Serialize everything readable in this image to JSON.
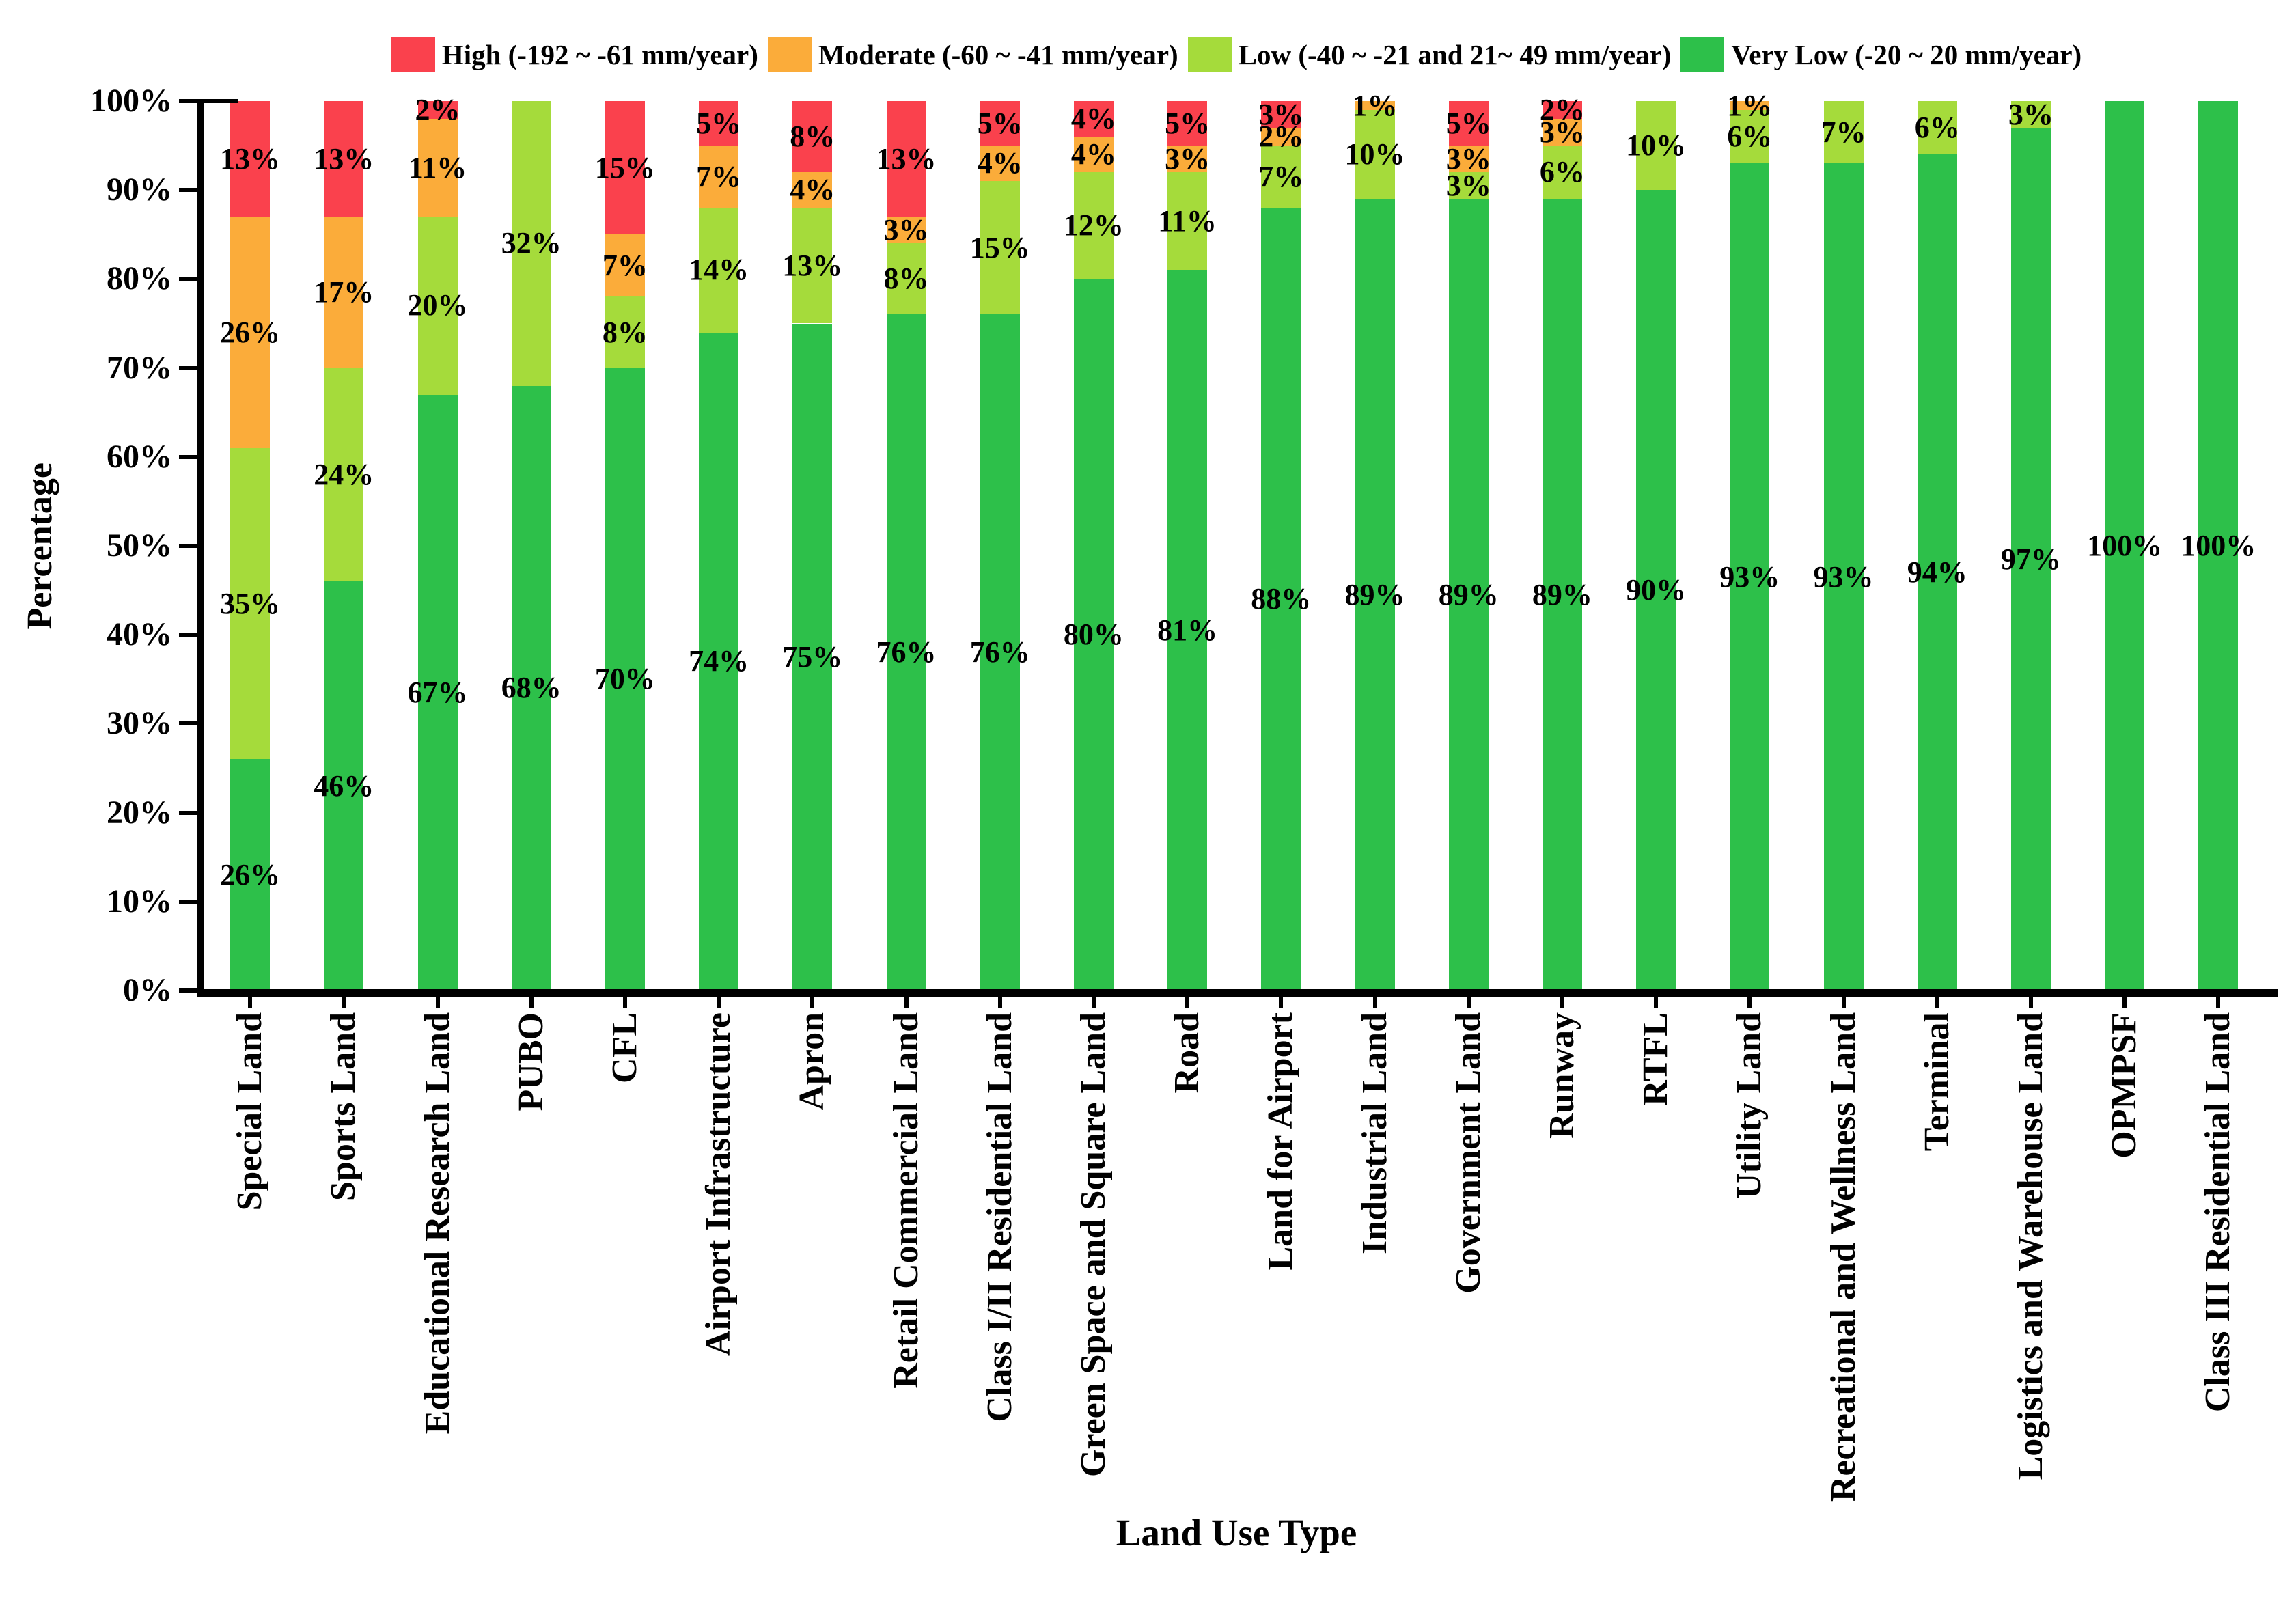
{
  "chart_data": {
    "type": "bar",
    "subtype": "stacked-percentage-column",
    "title": "",
    "xlabel": "Land Use Type",
    "ylabel": "Percentage",
    "ylim": [
      0,
      100
    ],
    "grid": false,
    "legend_position": "top",
    "bar_label_suffix": "%",
    "yticks": [
      "0%",
      "10%",
      "20%",
      "30%",
      "40%",
      "50%",
      "60%",
      "70%",
      "80%",
      "90%",
      "100%"
    ],
    "categories": [
      "Special Land",
      "Sports Land",
      "Educational Research Land",
      "PUBO",
      "CFL",
      "Airport Infrastructure",
      "Apron",
      "Retail Commercial Land",
      "Class I/II Residential Land",
      "Green Space and Square Land",
      "Road",
      "Land for Airport",
      "Industrial Land",
      "Government Land",
      "Runway",
      "RTFL",
      "Utility Land",
      "Recreational and Wellness Land",
      "Terminal",
      "Logistics and Warehouse Land",
      "OPMPSF",
      "Class III  Residential Land"
    ],
    "series": [
      {
        "name": "Very Low (-20 ~ 20 mm/year)",
        "color": "#2DC04A",
        "values": [
          26,
          46,
          67,
          68,
          70,
          74,
          75,
          76,
          76,
          80,
          81,
          88,
          89,
          89,
          89,
          90,
          93,
          93,
          94,
          97,
          100,
          100
        ]
      },
      {
        "name": "Low (-40 ~ -21 and 21~ 49 mm/year)",
        "color": "#A5DB3B",
        "values": [
          35,
          24,
          20,
          32,
          8,
          14,
          13,
          8,
          15,
          12,
          11,
          7,
          10,
          3,
          6,
          10,
          6,
          7,
          6,
          3,
          0,
          0
        ]
      },
      {
        "name": "Moderate (-60 ~ -41 mm/year)",
        "color": "#FBAC3A",
        "values": [
          26,
          17,
          11,
          0,
          7,
          7,
          4,
          3,
          4,
          4,
          3,
          2,
          1,
          3,
          3,
          0,
          1,
          0,
          0,
          0,
          0,
          0
        ]
      },
      {
        "name": "High (-192 ~ -61 mm/year)",
        "color": "#FA414D",
        "values": [
          13,
          13,
          2,
          0,
          15,
          5,
          8,
          13,
          5,
          4,
          5,
          3,
          0,
          5,
          2,
          0,
          0,
          0,
          0,
          0,
          0,
          0
        ]
      }
    ],
    "legend": [
      {
        "name": "High (-192 ~ -61 mm/year)",
        "color": "#FA414D"
      },
      {
        "name": "Moderate (-60 ~ -41 mm/year)",
        "color": "#FBAC3A"
      },
      {
        "name": "Low (-40 ~ -21 and 21~ 49 mm/year)",
        "color": "#A5DB3B"
      },
      {
        "name": "Very Low (-20 ~ 20 mm/year)",
        "color": "#2DC04A"
      }
    ]
  }
}
